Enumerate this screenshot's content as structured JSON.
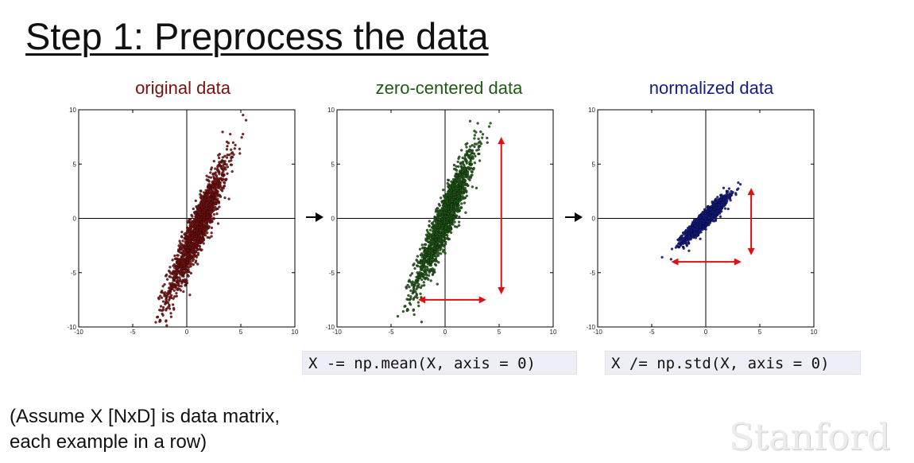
{
  "slide": {
    "title": "Step 1: Preprocess the data",
    "note_line1": "(Assume X [NxD] is data matrix,",
    "note_line2": "each example in a row)",
    "logo_text": "Stanford",
    "code_center": "X -= np.mean(X, axis = 0)",
    "code_normalize": "X /= np.std(X, axis = 0)"
  },
  "colors": {
    "original": "#7a1010",
    "centered": "#1f5a14",
    "normalized": "#141c8a",
    "scale_arrows": "#e01010",
    "flow_arrows": "#000000"
  },
  "chart_data": [
    {
      "type": "scatter",
      "title": "original data",
      "color": "#7a1010",
      "xlim": [
        -10,
        10
      ],
      "ylim": [
        -10,
        10
      ],
      "xticks": [
        -10,
        -5,
        0,
        5,
        10
      ],
      "yticks": [
        -10,
        -5,
        0,
        5,
        10
      ],
      "grid": false,
      "distribution": {
        "mean": [
          1.0,
          -1.0
        ],
        "std": [
          1.4,
          3.2
        ],
        "correlation": 0.93,
        "n_points": 1500
      },
      "annotations": []
    },
    {
      "type": "scatter",
      "title": "zero-centered data",
      "color": "#1f5a14",
      "xlim": [
        -10,
        10
      ],
      "ylim": [
        -10,
        10
      ],
      "xticks": [
        -10,
        -5,
        0,
        5,
        10
      ],
      "yticks": [
        -10,
        -5,
        0,
        5,
        10
      ],
      "grid": false,
      "distribution": {
        "mean": [
          0,
          0
        ],
        "std": [
          1.4,
          3.2
        ],
        "correlation": 0.93,
        "n_points": 1500
      },
      "annotations": [
        {
          "type": "double-arrow",
          "from": [
            -2.5,
            -7.5
          ],
          "to": [
            3.8,
            -7.5
          ]
        },
        {
          "type": "double-arrow",
          "from": [
            5.2,
            7.5
          ],
          "to": [
            5.2,
            -7.0
          ]
        }
      ]
    },
    {
      "type": "scatter",
      "title": "normalized data",
      "color": "#141c8a",
      "xlim": [
        -10,
        10
      ],
      "ylim": [
        -10,
        10
      ],
      "xticks": [
        -10,
        -5,
        0,
        5,
        10
      ],
      "yticks": [
        -10,
        -5,
        0,
        5,
        10
      ],
      "grid": false,
      "distribution": {
        "mean": [
          0,
          0
        ],
        "std": [
          1.0,
          1.0
        ],
        "correlation": 0.93,
        "n_points": 1500
      },
      "annotations": [
        {
          "type": "double-arrow",
          "from": [
            -3.2,
            -4.0
          ],
          "to": [
            3.3,
            -4.0
          ]
        },
        {
          "type": "double-arrow",
          "from": [
            4.2,
            2.8
          ],
          "to": [
            4.2,
            -3.4
          ]
        }
      ]
    }
  ]
}
